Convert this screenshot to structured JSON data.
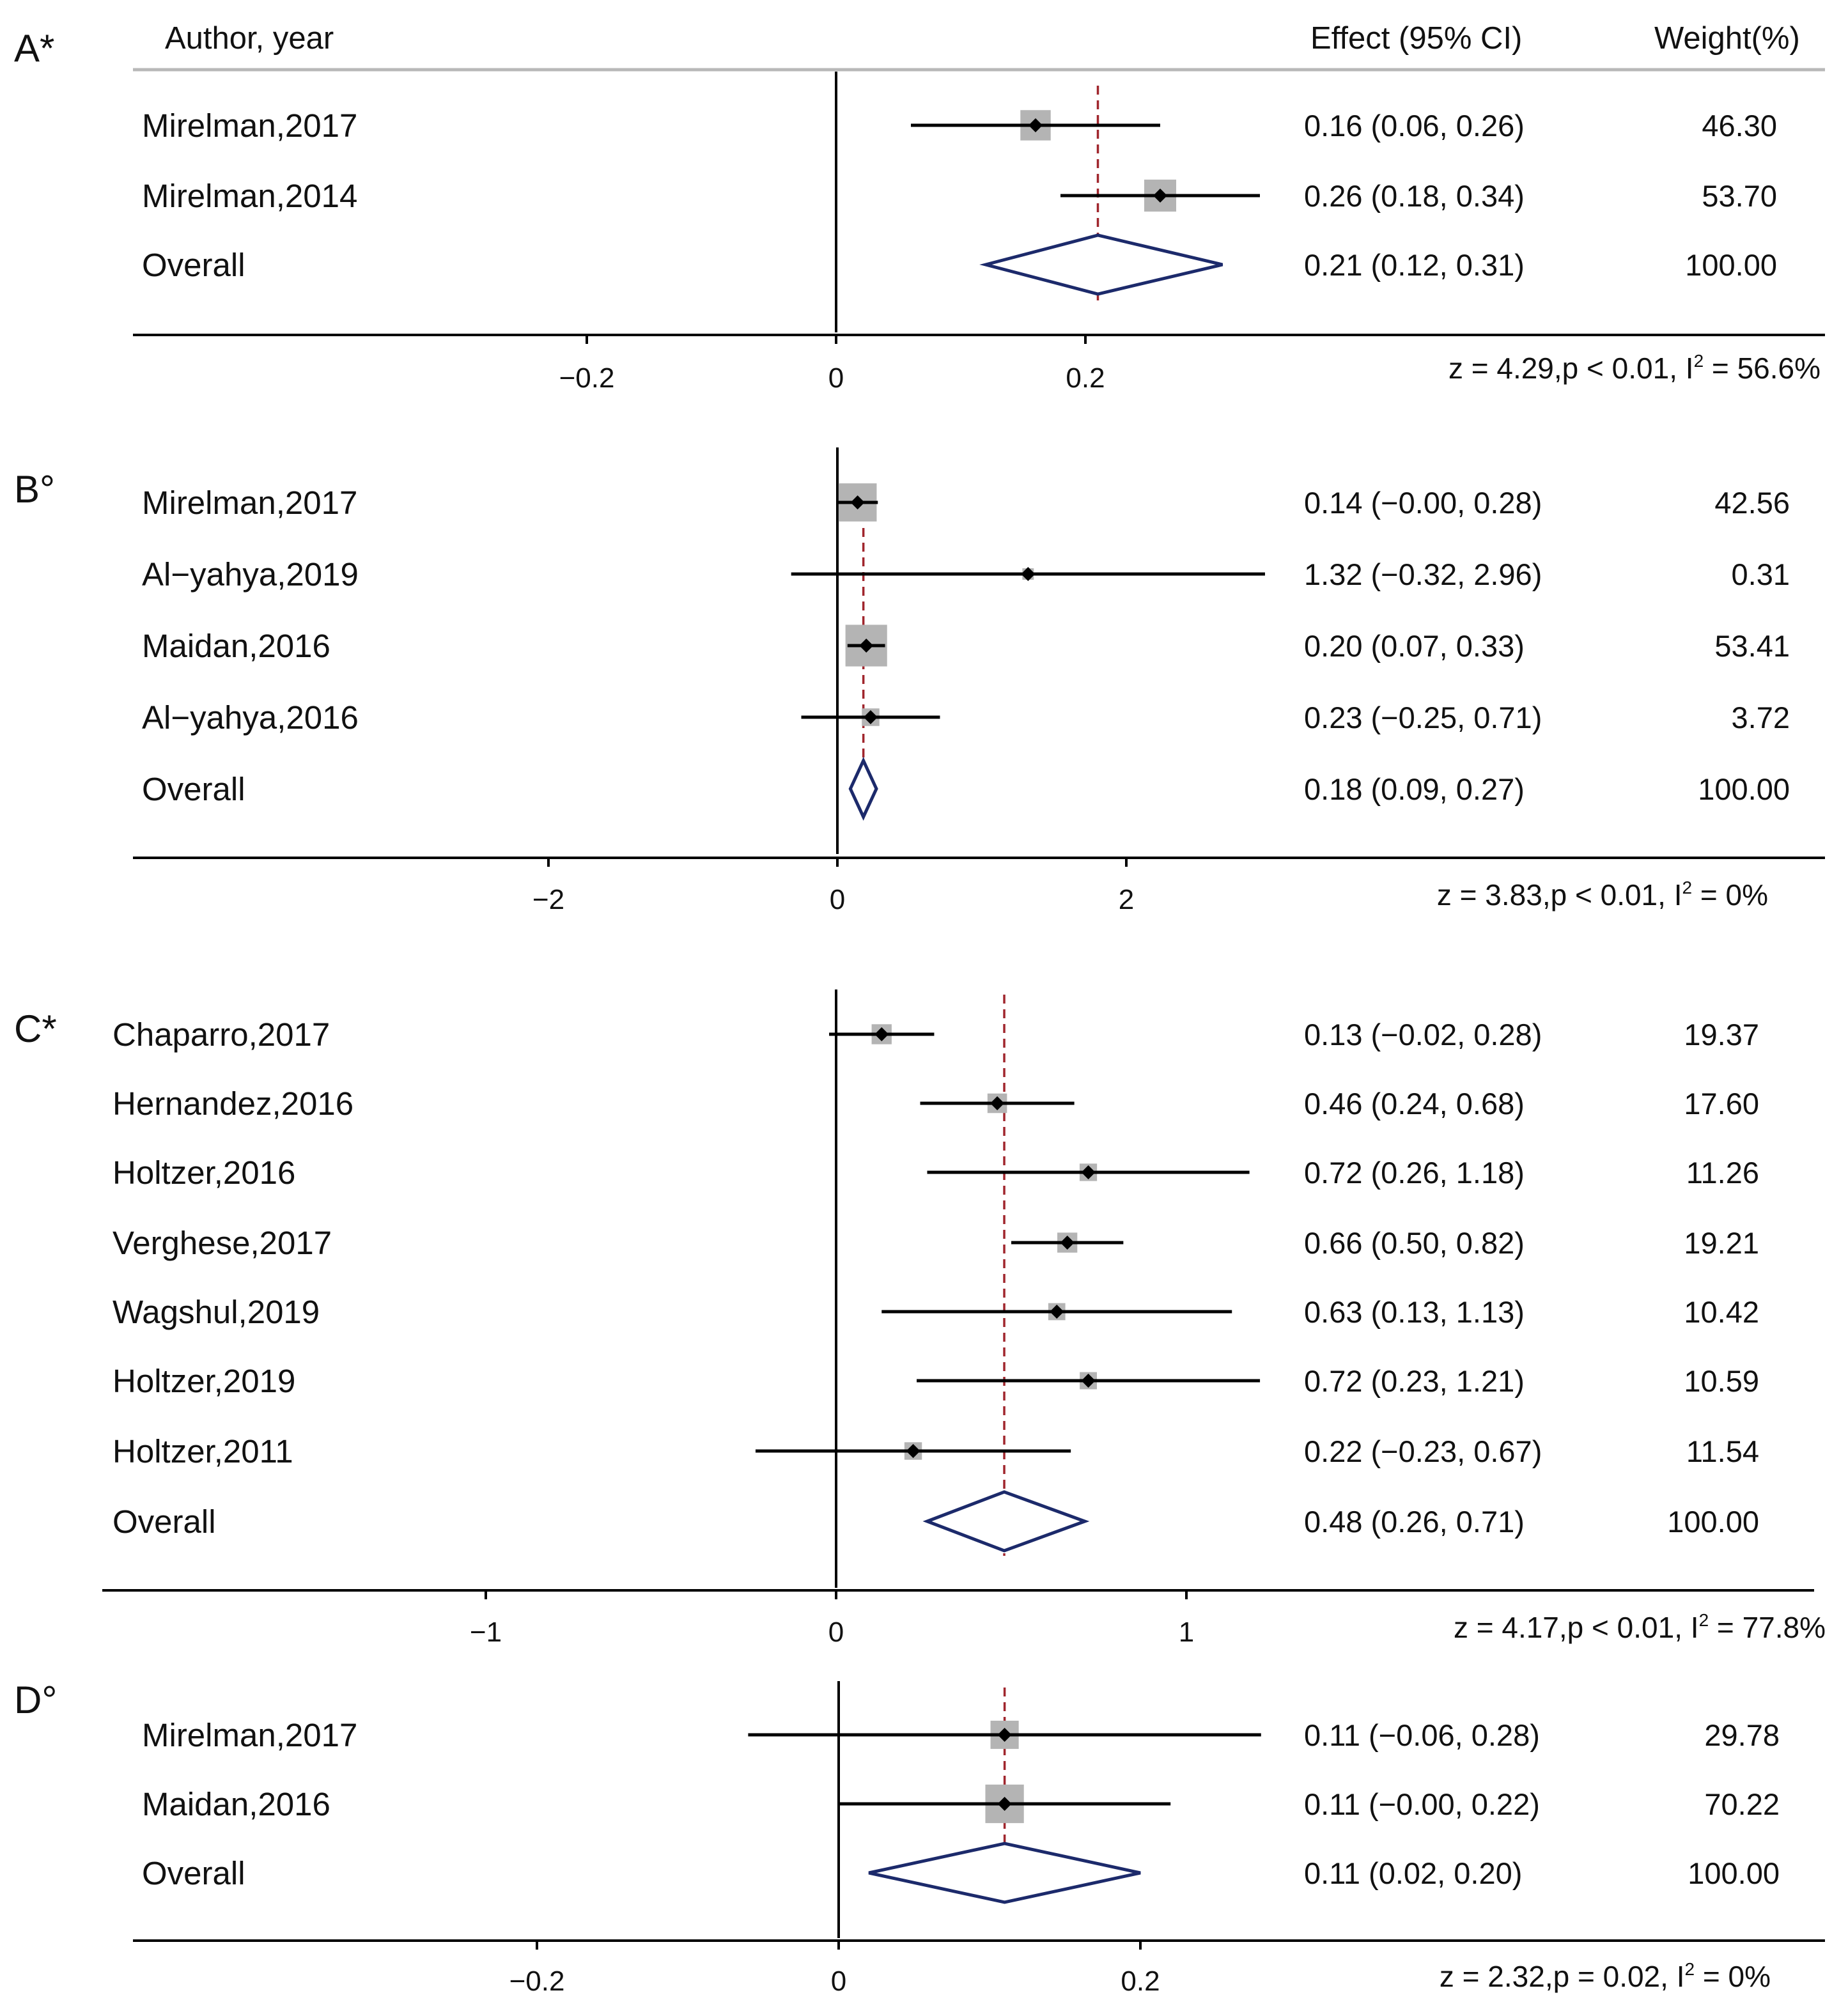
{
  "header": {
    "author_label": "Author, year",
    "effect_label": "Effect (95% CI)",
    "weight_label": "Weight(%)"
  },
  "colors": {
    "ci_line": "#000000",
    "weight_box": "#b4b4b4",
    "point": "#000000",
    "overall_diamond": "#1c2a6b",
    "overall_line": "#a0262d",
    "axis": "#000000"
  },
  "chart_data": [
    {
      "type": "forest",
      "panel_label": "A*",
      "xlim": [
        -0.4,
        0.4
      ],
      "ticks": [
        -0.2,
        0,
        0.2
      ],
      "tick_labels": [
        "−0.2",
        "0",
        "0.2"
      ],
      "stats": "z = 4.29,p < 0.01, I² = 56.6%",
      "stats_parts": [
        "z = 4.29,p < 0.01, I",
        "2",
        " = 56.6%"
      ],
      "studies": [
        {
          "name": "Mirelman,2017",
          "effect": 0.16,
          "lo": 0.06,
          "hi": 0.26,
          "effect_text": "0.16 (0.06, 0.26)",
          "weight": 46.3,
          "weight_text": "46.30"
        },
        {
          "name": "Mirelman,2014",
          "effect": 0.26,
          "lo": 0.18,
          "hi": 0.34,
          "effect_text": "0.26 (0.18, 0.34)",
          "weight": 53.7,
          "weight_text": "53.70"
        }
      ],
      "overall": {
        "name": "Overall",
        "effect": 0.21,
        "lo": 0.12,
        "hi": 0.31,
        "effect_text": "0.21 (0.12, 0.31)",
        "weight_text": "100.00"
      }
    },
    {
      "type": "forest",
      "panel_label": "B°",
      "xlim": [
        -5,
        5
      ],
      "ticks": [
        -2,
        0,
        2
      ],
      "tick_labels": [
        "−2",
        "0",
        "2"
      ],
      "stats": "z = 3.83,p < 0.01, I² = 0%",
      "stats_parts": [
        "z = 3.83,p < 0.01, I",
        "2",
        " = 0%"
      ],
      "studies": [
        {
          "name": "Mirelman,2017",
          "effect": 0.14,
          "lo": -0.0,
          "hi": 0.28,
          "effect_text": "0.14 (−0.00, 0.28)",
          "weight": 42.56,
          "weight_text": "42.56"
        },
        {
          "name": "Al−yahya,2019",
          "effect": 1.32,
          "lo": -0.32,
          "hi": 2.96,
          "effect_text": "1.32 (−0.32, 2.96)",
          "weight": 0.31,
          "weight_text": "0.31"
        },
        {
          "name": "Maidan,2016",
          "effect": 0.2,
          "lo": 0.07,
          "hi": 0.33,
          "effect_text": "0.20 (0.07, 0.33)",
          "weight": 53.41,
          "weight_text": "53.41"
        },
        {
          "name": "Al−yahya,2016",
          "effect": 0.23,
          "lo": -0.25,
          "hi": 0.71,
          "effect_text": "0.23 (−0.25, 0.71)",
          "weight": 3.72,
          "weight_text": "3.72"
        }
      ],
      "overall": {
        "name": "Overall",
        "effect": 0.18,
        "lo": 0.09,
        "hi": 0.27,
        "effect_text": "0.18 (0.09, 0.27)",
        "weight_text": "100.00"
      }
    },
    {
      "type": "forest",
      "panel_label": "C*",
      "xlim": [
        -2,
        2
      ],
      "ticks": [
        -1,
        0,
        1
      ],
      "tick_labels": [
        "−1",
        "0",
        "1"
      ],
      "stats": "z = 4.17,p < 0.01, I² = 77.8%",
      "stats_parts": [
        "z = 4.17,p < 0.01, I",
        "2",
        " = 77.8%"
      ],
      "studies": [
        {
          "name": "Chaparro,2017",
          "effect": 0.13,
          "lo": -0.02,
          "hi": 0.28,
          "effect_text": "0.13 (−0.02, 0.28)",
          "weight": 19.37,
          "weight_text": "19.37"
        },
        {
          "name": "Hernandez,2016",
          "effect": 0.46,
          "lo": 0.24,
          "hi": 0.68,
          "effect_text": "0.46 (0.24, 0.68)",
          "weight": 17.6,
          "weight_text": "17.60"
        },
        {
          "name": "Holtzer,2016",
          "effect": 0.72,
          "lo": 0.26,
          "hi": 1.18,
          "effect_text": "0.72 (0.26, 1.18)",
          "weight": 11.26,
          "weight_text": "11.26"
        },
        {
          "name": "Verghese,2017",
          "effect": 0.66,
          "lo": 0.5,
          "hi": 0.82,
          "effect_text": "0.66 (0.50, 0.82)",
          "weight": 19.21,
          "weight_text": "19.21"
        },
        {
          "name": "Wagshul,2019",
          "effect": 0.63,
          "lo": 0.13,
          "hi": 1.13,
          "effect_text": "0.63 (0.13, 1.13)",
          "weight": 10.42,
          "weight_text": "10.42"
        },
        {
          "name": "Holtzer,2019",
          "effect": 0.72,
          "lo": 0.23,
          "hi": 1.21,
          "effect_text": "0.72 (0.23, 1.21)",
          "weight": 10.59,
          "weight_text": "10.59"
        },
        {
          "name": "Holtzer,2011",
          "effect": 0.22,
          "lo": -0.23,
          "hi": 0.67,
          "effect_text": "0.22 (−0.23, 0.67)",
          "weight": 11.54,
          "weight_text": "11.54"
        }
      ],
      "overall": {
        "name": "Overall",
        "effect": 0.48,
        "lo": 0.26,
        "hi": 0.71,
        "effect_text": "0.48 (0.26, 0.71)",
        "weight_text": "100.00"
      }
    },
    {
      "type": "forest",
      "panel_label": "D°",
      "xlim": [
        -0.4,
        0.4
      ],
      "ticks": [
        -0.2,
        0,
        0.2
      ],
      "tick_labels": [
        "−0.2",
        "0",
        "0.2"
      ],
      "stats": "z = 2.32,p = 0.02, I² = 0%",
      "stats_parts": [
        "z = 2.32,p = 0.02, I",
        "2",
        " = 0%"
      ],
      "studies": [
        {
          "name": "Mirelman,2017",
          "effect": 0.11,
          "lo": -0.06,
          "hi": 0.28,
          "effect_text": "0.11 (−0.06, 0.28)",
          "weight": 29.78,
          "weight_text": "29.78"
        },
        {
          "name": "Maidan,2016",
          "effect": 0.11,
          "lo": -0.0,
          "hi": 0.22,
          "effect_text": "0.11 (−0.00, 0.22)",
          "weight": 70.22,
          "weight_text": "70.22"
        }
      ],
      "overall": {
        "name": "Overall",
        "effect": 0.11,
        "lo": 0.02,
        "hi": 0.2,
        "effect_text": "0.11 (0.02, 0.20)",
        "weight_text": "100.00"
      }
    }
  ]
}
